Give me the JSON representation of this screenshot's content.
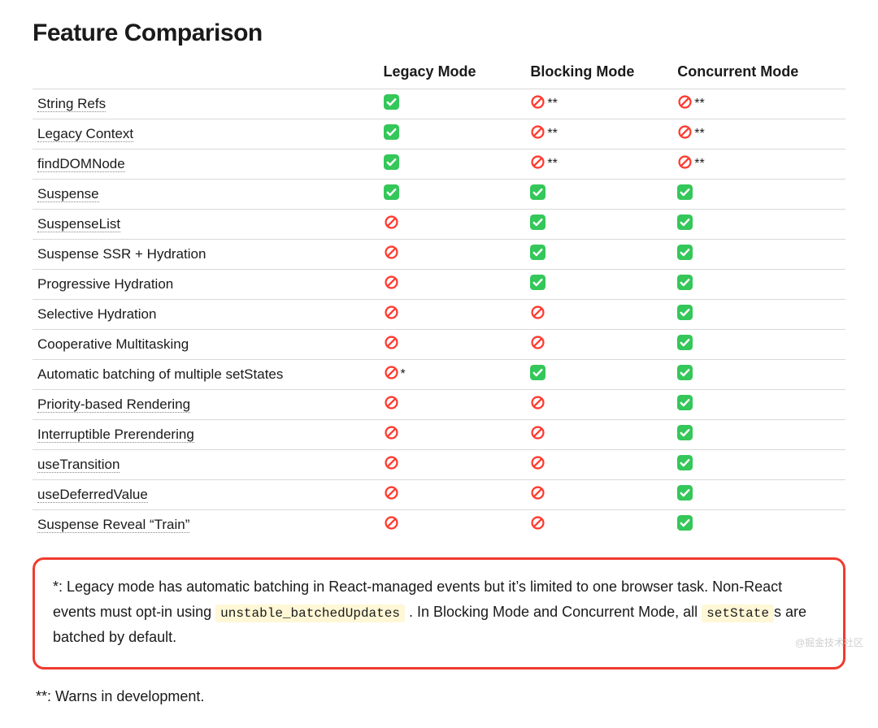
{
  "title": "Feature Comparison",
  "icons": {
    "yes": {
      "bg": "#34c759",
      "glyph": "check"
    },
    "no": {
      "bg": "#ffffff",
      "glyph": "prohibit",
      "stroke": "#ff3b30"
    }
  },
  "columns": [
    {
      "label": ""
    },
    {
      "label": "Legacy Mode"
    },
    {
      "label": "Blocking Mode"
    },
    {
      "label": "Concurrent Mode"
    }
  ],
  "rows": [
    {
      "feature": "String Refs",
      "link": true,
      "cells": [
        {
          "v": "yes"
        },
        {
          "v": "no",
          "suffix": "**"
        },
        {
          "v": "no",
          "suffix": "**"
        }
      ]
    },
    {
      "feature": "Legacy Context",
      "link": true,
      "cells": [
        {
          "v": "yes"
        },
        {
          "v": "no",
          "suffix": "**"
        },
        {
          "v": "no",
          "suffix": "**"
        }
      ]
    },
    {
      "feature": "findDOMNode",
      "link": true,
      "cells": [
        {
          "v": "yes"
        },
        {
          "v": "no",
          "suffix": "**"
        },
        {
          "v": "no",
          "suffix": "**"
        }
      ]
    },
    {
      "feature": "Suspense",
      "link": true,
      "cells": [
        {
          "v": "yes"
        },
        {
          "v": "yes"
        },
        {
          "v": "yes"
        }
      ]
    },
    {
      "feature": "SuspenseList",
      "link": true,
      "cells": [
        {
          "v": "no"
        },
        {
          "v": "yes"
        },
        {
          "v": "yes"
        }
      ]
    },
    {
      "feature": "Suspense SSR + Hydration",
      "link": false,
      "cells": [
        {
          "v": "no"
        },
        {
          "v": "yes"
        },
        {
          "v": "yes"
        }
      ]
    },
    {
      "feature": "Progressive Hydration",
      "link": false,
      "cells": [
        {
          "v": "no"
        },
        {
          "v": "yes"
        },
        {
          "v": "yes"
        }
      ]
    },
    {
      "feature": "Selective Hydration",
      "link": false,
      "cells": [
        {
          "v": "no"
        },
        {
          "v": "no"
        },
        {
          "v": "yes"
        }
      ]
    },
    {
      "feature": "Cooperative Multitasking",
      "link": false,
      "cells": [
        {
          "v": "no"
        },
        {
          "v": "no"
        },
        {
          "v": "yes"
        }
      ]
    },
    {
      "feature": "Automatic batching of multiple setStates",
      "link": false,
      "cells": [
        {
          "v": "no",
          "suffix": "*"
        },
        {
          "v": "yes"
        },
        {
          "v": "yes"
        }
      ]
    },
    {
      "feature": "Priority-based Rendering",
      "link": true,
      "cells": [
        {
          "v": "no"
        },
        {
          "v": "no"
        },
        {
          "v": "yes"
        }
      ]
    },
    {
      "feature": "Interruptible Prerendering",
      "link": true,
      "cells": [
        {
          "v": "no"
        },
        {
          "v": "no"
        },
        {
          "v": "yes"
        }
      ]
    },
    {
      "feature": "useTransition",
      "link": true,
      "cells": [
        {
          "v": "no"
        },
        {
          "v": "no"
        },
        {
          "v": "yes"
        }
      ]
    },
    {
      "feature": "useDeferredValue",
      "link": true,
      "cells": [
        {
          "v": "no"
        },
        {
          "v": "no"
        },
        {
          "v": "yes"
        }
      ]
    },
    {
      "feature": "Suspense Reveal “Train”",
      "link": true,
      "cells": [
        {
          "v": "no"
        },
        {
          "v": "no"
        },
        {
          "v": "yes"
        }
      ]
    }
  ],
  "footnote_star": {
    "prefix": "*: Legacy mode has automatic batching in React-managed events but it’s limited to one browser task. Non-React events must opt-in using ",
    "code1": "unstable_batchedUpdates",
    "mid": ". In Blocking Mode and Concurrent Mode, all ",
    "code2": "setState",
    "suffix": "s are batched by default."
  },
  "footnote_dblstar": "**: Warns in development.",
  "watermark": "@掘金技术社区",
  "style": {
    "border_color": "#d9d9d9",
    "callout_border": "#ef3b2f",
    "code_bg": "#fff7d6",
    "text_color": "#1a1a1a",
    "yes_green": "#34c759",
    "no_red": "#ff3b30"
  }
}
